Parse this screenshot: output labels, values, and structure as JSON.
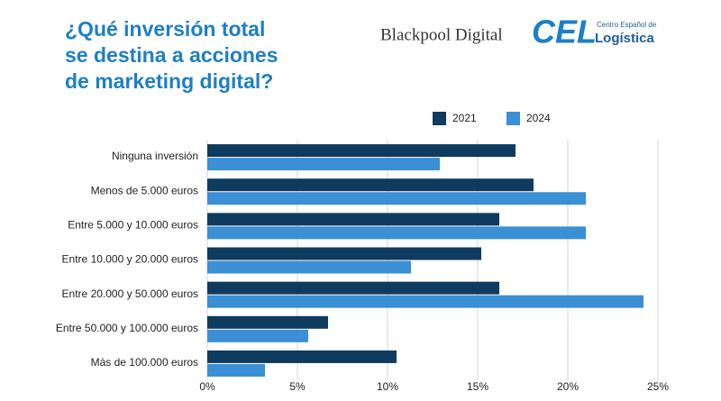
{
  "header": {
    "brand": "Blackpool Digital",
    "logo_mark": "CEL",
    "logo_top": "Centro Español de",
    "logo_bottom": "Logística"
  },
  "chart_data": {
    "type": "hbar",
    "title": [
      "¿Qué inversión total",
      "se destina a acciones",
      "de marketing digital?"
    ],
    "categories": [
      "Ninguna inversión",
      "Menos de 5.000 euros",
      "Entre 5.000 y 10.000 euros",
      "Entre 10.000 y 20.000 euros",
      "Entre 20.000 y 50.000 euros",
      "Entre 50.000 y 100.000 euros",
      "Más de 100.000 euros"
    ],
    "series": [
      {
        "name": "2021",
        "color": "#0e3b5e",
        "values": [
          17.1,
          18.1,
          16.2,
          15.2,
          16.2,
          6.7,
          10.5
        ]
      },
      {
        "name": "2024",
        "color": "#3b8fd4",
        "values": [
          12.9,
          21.0,
          21.0,
          11.3,
          24.2,
          5.6,
          3.2
        ]
      }
    ],
    "xlim": [
      0,
      25
    ],
    "xticks": [
      {
        "value": 0,
        "label": "0%"
      },
      {
        "value": 5,
        "label": "5%"
      },
      {
        "value": 10,
        "label": "10%"
      },
      {
        "value": 15,
        "label": "15%"
      },
      {
        "value": 20,
        "label": "20%"
      },
      {
        "value": 25,
        "label": "25%"
      }
    ],
    "grid": true
  }
}
